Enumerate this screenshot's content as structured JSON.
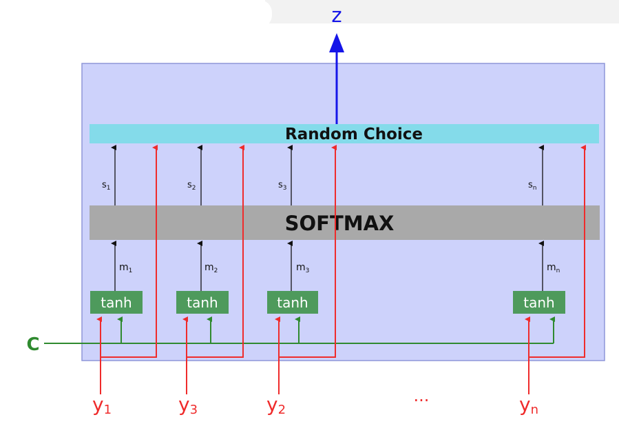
{
  "diagram": {
    "output_label": "z",
    "context_label": "C",
    "random_choice_label": "Random Choice",
    "softmax_label": "SOFTMAX",
    "ellipsis": "...",
    "columns": [
      {
        "tanh": "tanh",
        "m_base": "m",
        "m_sub": "1",
        "s_base": "s",
        "s_sub": "1",
        "y_base": "y",
        "y_sub": "1"
      },
      {
        "tanh": "tanh",
        "m_base": "m",
        "m_sub": "2",
        "s_base": "s",
        "s_sub": "2",
        "y_base": "y",
        "y_sub": "3"
      },
      {
        "tanh": "tanh",
        "m_base": "m",
        "m_sub": "3",
        "s_base": "s",
        "s_sub": "3",
        "y_base": "y",
        "y_sub": "2"
      },
      {
        "tanh": "tanh",
        "m_base": "m",
        "m_sub": "n",
        "s_base": "s",
        "s_sub": "n",
        "y_base": "y",
        "y_sub": "n"
      }
    ],
    "colors": {
      "panel_fill": "#cdd2fb",
      "panel_stroke": "#8e96d8",
      "random_choice_fill": "#84dbea",
      "softmax_fill": "#a9a9a9",
      "tanh_fill": "#4e9a5c",
      "red": "#ef2b2b",
      "green": "#2f8a2f",
      "blue": "#1515e8",
      "black": "#111111"
    }
  }
}
